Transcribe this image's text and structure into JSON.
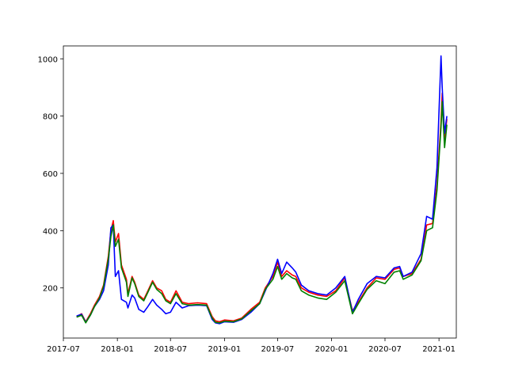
{
  "chart_data": {
    "type": "line",
    "title": "",
    "xlabel": "",
    "ylabel": "",
    "xlim": [
      "2017-07-01",
      "2021-03-01"
    ],
    "ylim": [
      25,
      1045
    ],
    "x_ticks": [
      {
        "date": "2017-07-01",
        "label": "2017-07"
      },
      {
        "date": "2018-01-01",
        "label": "2018-01"
      },
      {
        "date": "2018-07-01",
        "label": "2018-07"
      },
      {
        "date": "2019-01-01",
        "label": "2019-01"
      },
      {
        "date": "2019-07-01",
        "label": "2019-07"
      },
      {
        "date": "2020-01-01",
        "label": "2020-01"
      },
      {
        "date": "2020-07-01",
        "label": "2020-07"
      },
      {
        "date": "2021-01-01",
        "label": "2021-01"
      }
    ],
    "y_ticks": [
      200,
      400,
      600,
      800,
      1000
    ],
    "grid": false,
    "legend": "none",
    "series": [
      {
        "color": "#ff0000",
        "points": [
          [
            "2017-08-15",
            100
          ],
          [
            "2017-09-01",
            110
          ],
          [
            "2017-09-15",
            82
          ],
          [
            "2017-10-01",
            110
          ],
          [
            "2017-10-15",
            140
          ],
          [
            "2017-11-01",
            170
          ],
          [
            "2017-11-15",
            210
          ],
          [
            "2017-12-01",
            310
          ],
          [
            "2017-12-10",
            400
          ],
          [
            "2017-12-18",
            435
          ],
          [
            "2017-12-25",
            360
          ],
          [
            "2018-01-05",
            390
          ],
          [
            "2018-01-15",
            280
          ],
          [
            "2018-02-01",
            230
          ],
          [
            "2018-02-06",
            180
          ],
          [
            "2018-02-20",
            240
          ],
          [
            "2018-03-01",
            220
          ],
          [
            "2018-03-15",
            175
          ],
          [
            "2018-04-01",
            160
          ],
          [
            "2018-04-15",
            190
          ],
          [
            "2018-05-01",
            225
          ],
          [
            "2018-05-15",
            200
          ],
          [
            "2018-06-01",
            190
          ],
          [
            "2018-06-15",
            160
          ],
          [
            "2018-07-01",
            150
          ],
          [
            "2018-07-20",
            190
          ],
          [
            "2018-08-10",
            150
          ],
          [
            "2018-09-01",
            145
          ],
          [
            "2018-10-01",
            148
          ],
          [
            "2018-11-01",
            145
          ],
          [
            "2018-11-20",
            100
          ],
          [
            "2018-12-01",
            85
          ],
          [
            "2018-12-15",
            82
          ],
          [
            "2019-01-01",
            88
          ],
          [
            "2019-02-01",
            85
          ],
          [
            "2019-03-01",
            95
          ],
          [
            "2019-04-01",
            125
          ],
          [
            "2019-05-01",
            150
          ],
          [
            "2019-05-20",
            200
          ],
          [
            "2019-06-15",
            240
          ],
          [
            "2019-07-01",
            290
          ],
          [
            "2019-07-15",
            240
          ],
          [
            "2019-08-01",
            260
          ],
          [
            "2019-08-20",
            245
          ],
          [
            "2019-09-01",
            240
          ],
          [
            "2019-09-20",
            200
          ],
          [
            "2019-10-15",
            185
          ],
          [
            "2019-11-15",
            175
          ],
          [
            "2019-12-15",
            170
          ],
          [
            "2020-01-15",
            190
          ],
          [
            "2020-02-15",
            235
          ],
          [
            "2020-03-12",
            120
          ],
          [
            "2020-04-01",
            150
          ],
          [
            "2020-05-01",
            200
          ],
          [
            "2020-06-01",
            235
          ],
          [
            "2020-07-01",
            230
          ],
          [
            "2020-08-01",
            265
          ],
          [
            "2020-08-20",
            270
          ],
          [
            "2020-09-01",
            240
          ],
          [
            "2020-10-01",
            250
          ],
          [
            "2020-11-01",
            300
          ],
          [
            "2020-11-20",
            420
          ],
          [
            "2020-12-10",
            425
          ],
          [
            "2020-12-25",
            560
          ],
          [
            "2021-01-08",
            780
          ],
          [
            "2021-01-12",
            880
          ],
          [
            "2021-01-20",
            720
          ],
          [
            "2021-01-28",
            790
          ]
        ]
      },
      {
        "color": "#0000ff",
        "points": [
          [
            "2017-08-15",
            102
          ],
          [
            "2017-09-01",
            108
          ],
          [
            "2017-09-15",
            80
          ],
          [
            "2017-10-01",
            105
          ],
          [
            "2017-10-15",
            135
          ],
          [
            "2017-11-01",
            160
          ],
          [
            "2017-11-15",
            190
          ],
          [
            "2017-12-01",
            280
          ],
          [
            "2017-12-10",
            410
          ],
          [
            "2017-12-18",
            420
          ],
          [
            "2017-12-25",
            240
          ],
          [
            "2018-01-05",
            260
          ],
          [
            "2018-01-15",
            160
          ],
          [
            "2018-02-01",
            150
          ],
          [
            "2018-02-06",
            130
          ],
          [
            "2018-02-20",
            175
          ],
          [
            "2018-03-01",
            165
          ],
          [
            "2018-03-15",
            125
          ],
          [
            "2018-04-01",
            115
          ],
          [
            "2018-04-15",
            135
          ],
          [
            "2018-05-01",
            160
          ],
          [
            "2018-05-15",
            140
          ],
          [
            "2018-06-01",
            125
          ],
          [
            "2018-06-15",
            110
          ],
          [
            "2018-07-01",
            115
          ],
          [
            "2018-07-20",
            150
          ],
          [
            "2018-08-10",
            130
          ],
          [
            "2018-09-01",
            138
          ],
          [
            "2018-10-01",
            140
          ],
          [
            "2018-11-01",
            138
          ],
          [
            "2018-11-20",
            90
          ],
          [
            "2018-12-01",
            78
          ],
          [
            "2018-12-15",
            75
          ],
          [
            "2019-01-01",
            82
          ],
          [
            "2019-02-01",
            80
          ],
          [
            "2019-03-01",
            90
          ],
          [
            "2019-04-01",
            115
          ],
          [
            "2019-05-01",
            145
          ],
          [
            "2019-05-20",
            190
          ],
          [
            "2019-06-15",
            250
          ],
          [
            "2019-07-01",
            300
          ],
          [
            "2019-07-15",
            250
          ],
          [
            "2019-08-01",
            290
          ],
          [
            "2019-08-20",
            270
          ],
          [
            "2019-09-01",
            255
          ],
          [
            "2019-09-20",
            210
          ],
          [
            "2019-10-15",
            190
          ],
          [
            "2019-11-15",
            180
          ],
          [
            "2019-12-15",
            175
          ],
          [
            "2020-01-15",
            200
          ],
          [
            "2020-02-15",
            240
          ],
          [
            "2020-03-12",
            115
          ],
          [
            "2020-04-01",
            160
          ],
          [
            "2020-05-01",
            215
          ],
          [
            "2020-06-01",
            240
          ],
          [
            "2020-07-01",
            235
          ],
          [
            "2020-08-01",
            270
          ],
          [
            "2020-08-20",
            275
          ],
          [
            "2020-09-01",
            240
          ],
          [
            "2020-10-01",
            255
          ],
          [
            "2020-11-01",
            320
          ],
          [
            "2020-11-20",
            450
          ],
          [
            "2020-12-10",
            440
          ],
          [
            "2020-12-25",
            620
          ],
          [
            "2021-01-08",
            1010
          ],
          [
            "2021-01-12",
            900
          ],
          [
            "2021-01-20",
            740
          ],
          [
            "2021-01-28",
            800
          ]
        ]
      },
      {
        "color": "#008000",
        "points": [
          [
            "2017-08-15",
            98
          ],
          [
            "2017-09-01",
            105
          ],
          [
            "2017-09-15",
            78
          ],
          [
            "2017-10-01",
            105
          ],
          [
            "2017-10-15",
            135
          ],
          [
            "2017-11-01",
            165
          ],
          [
            "2017-11-15",
            205
          ],
          [
            "2017-12-01",
            300
          ],
          [
            "2017-12-10",
            380
          ],
          [
            "2017-12-18",
            420
          ],
          [
            "2017-12-25",
            345
          ],
          [
            "2018-01-05",
            370
          ],
          [
            "2018-01-15",
            270
          ],
          [
            "2018-02-01",
            220
          ],
          [
            "2018-02-06",
            170
          ],
          [
            "2018-02-20",
            235
          ],
          [
            "2018-03-01",
            215
          ],
          [
            "2018-03-15",
            170
          ],
          [
            "2018-04-01",
            155
          ],
          [
            "2018-04-15",
            185
          ],
          [
            "2018-05-01",
            220
          ],
          [
            "2018-05-15",
            195
          ],
          [
            "2018-06-01",
            180
          ],
          [
            "2018-06-15",
            155
          ],
          [
            "2018-07-01",
            145
          ],
          [
            "2018-07-20",
            180
          ],
          [
            "2018-08-10",
            145
          ],
          [
            "2018-09-01",
            140
          ],
          [
            "2018-10-01",
            142
          ],
          [
            "2018-11-01",
            140
          ],
          [
            "2018-11-20",
            95
          ],
          [
            "2018-12-01",
            80
          ],
          [
            "2018-12-15",
            78
          ],
          [
            "2019-01-01",
            84
          ],
          [
            "2019-02-01",
            82
          ],
          [
            "2019-03-01",
            92
          ],
          [
            "2019-04-01",
            120
          ],
          [
            "2019-05-01",
            145
          ],
          [
            "2019-05-20",
            195
          ],
          [
            "2019-06-15",
            230
          ],
          [
            "2019-07-01",
            275
          ],
          [
            "2019-07-15",
            230
          ],
          [
            "2019-08-01",
            250
          ],
          [
            "2019-08-20",
            235
          ],
          [
            "2019-09-01",
            230
          ],
          [
            "2019-09-20",
            190
          ],
          [
            "2019-10-15",
            175
          ],
          [
            "2019-11-15",
            165
          ],
          [
            "2019-12-15",
            160
          ],
          [
            "2020-01-15",
            185
          ],
          [
            "2020-02-15",
            225
          ],
          [
            "2020-03-12",
            110
          ],
          [
            "2020-04-01",
            145
          ],
          [
            "2020-05-01",
            195
          ],
          [
            "2020-06-01",
            225
          ],
          [
            "2020-07-01",
            215
          ],
          [
            "2020-08-01",
            255
          ],
          [
            "2020-08-20",
            260
          ],
          [
            "2020-09-01",
            230
          ],
          [
            "2020-10-01",
            245
          ],
          [
            "2020-11-01",
            295
          ],
          [
            "2020-11-20",
            400
          ],
          [
            "2020-12-10",
            410
          ],
          [
            "2020-12-25",
            540
          ],
          [
            "2021-01-08",
            760
          ],
          [
            "2021-01-12",
            850
          ],
          [
            "2021-01-20",
            690
          ],
          [
            "2021-01-28",
            770
          ]
        ]
      }
    ]
  }
}
